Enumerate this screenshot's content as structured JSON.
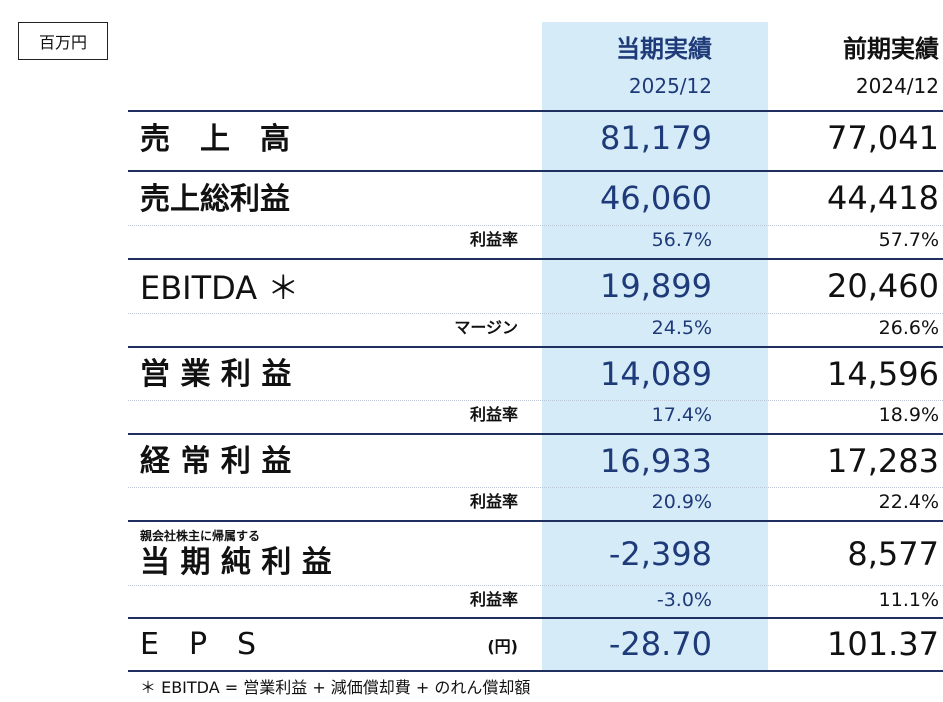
{
  "unit_label": "百万円",
  "columns": {
    "current": {
      "title": "当期実績",
      "period": "2025/12"
    },
    "previous": {
      "title": "前期実績",
      "period": "2024/12"
    }
  },
  "rows": {
    "sales": {
      "label": "売　上　高",
      "current": "81,179",
      "previous": "77,041"
    },
    "gross": {
      "label": "売上総利益",
      "current": "46,060",
      "previous": "44,418",
      "sub_label": "利益率",
      "sub_current": "56.7%",
      "sub_previous": "57.7%"
    },
    "ebitda": {
      "label": "EBITDA ＊",
      "current": "19,899",
      "previous": "20,460",
      "sub_label": "マージン",
      "sub_current": "24.5%",
      "sub_previous": "26.6%"
    },
    "operating": {
      "label": "営 業 利 益",
      "current": "14,089",
      "previous": "14,596",
      "sub_label": "利益率",
      "sub_current": "17.4%",
      "sub_previous": "18.9%"
    },
    "ordinary": {
      "label": "経 常 利 益",
      "current": "16,933",
      "previous": "17,283",
      "sub_label": "利益率",
      "sub_current": "20.9%",
      "sub_previous": "22.4%"
    },
    "net": {
      "small_label": "親会社株主に帰属する",
      "label": "当 期 純 利 益",
      "current": "-2,398",
      "previous": "8,577",
      "sub_label": "利益率",
      "sub_current": "-3.0%",
      "sub_previous": "11.1%"
    },
    "eps": {
      "label": "E　P　S",
      "unit": "(円)",
      "current": "-28.70",
      "previous": "101.37"
    }
  },
  "footnote": "＊ EBITDA = 営業利益 + 減価償却費 + のれん償却額",
  "colors": {
    "highlight_column": "#d5ecf8",
    "current_text": "#1f3a78",
    "rule": "#1f3060"
  }
}
